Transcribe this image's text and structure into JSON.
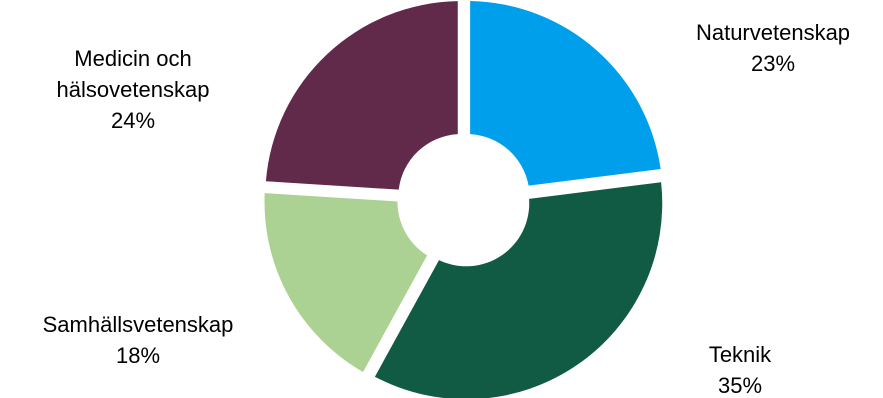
{
  "chart_data": {
    "type": "pie",
    "variant": "donut",
    "slices": [
      {
        "label": "Naturvetenskap",
        "label_lines": [
          "Naturvetenskap"
        ],
        "value": 23,
        "value_label": "23%",
        "color": "#009fec"
      },
      {
        "label": "Teknik",
        "label_lines": [
          "Teknik"
        ],
        "value": 35,
        "value_label": "35%",
        "color": "#115a43"
      },
      {
        "label": "Samhällsvetenskap",
        "label_lines": [
          "Samhällsvetenskap"
        ],
        "value": 18,
        "value_label": "18%",
        "color": "#acd293"
      },
      {
        "label": "Medicin och hälsovetenskap",
        "label_lines": [
          "Medicin och",
          "hälsovetenskap"
        ],
        "value": 24,
        "value_label": "24%",
        "color": "#61294a"
      }
    ],
    "legend": "none"
  }
}
